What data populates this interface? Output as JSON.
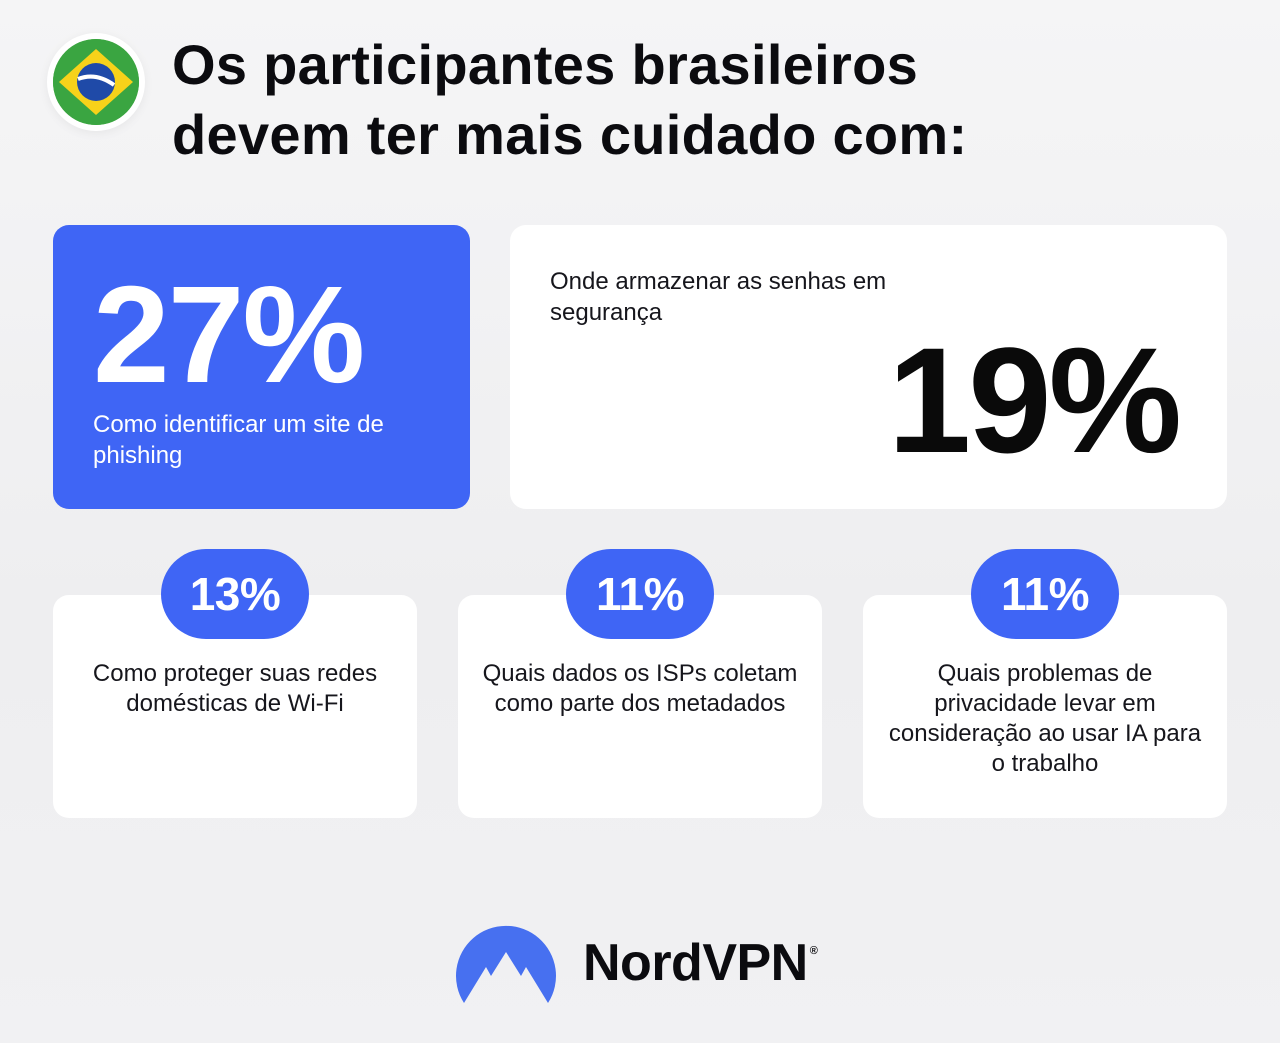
{
  "header": {
    "title_line1": "Os participantes brasileiros",
    "title_line2": "devem ter mais cuidado com:",
    "flag_icon": "brazil-flag-icon"
  },
  "stats": {
    "phishing": {
      "value": "27%",
      "label": "Como identificar um site de phishing"
    },
    "passwords": {
      "value": "19%",
      "label": "Onde armazenar as senhas em segurança"
    },
    "wifi": {
      "value": "13%",
      "label": "Como proteger suas redes domésticas de Wi-Fi"
    },
    "isps": {
      "value": "11%",
      "label": "Quais dados os ISPs coletam como parte dos metadados"
    },
    "ai": {
      "value": "11%",
      "label": "Quais problemas de privacidade levar em consideração ao usar IA para o trabalho"
    }
  },
  "brand": {
    "name": "NordVPN",
    "registered": "®",
    "logo_icon": "nordvpn-mountain-icon"
  },
  "colors": {
    "accent": "#3f65f5",
    "text": "#0b0b0f",
    "card": "#ffffff"
  }
}
